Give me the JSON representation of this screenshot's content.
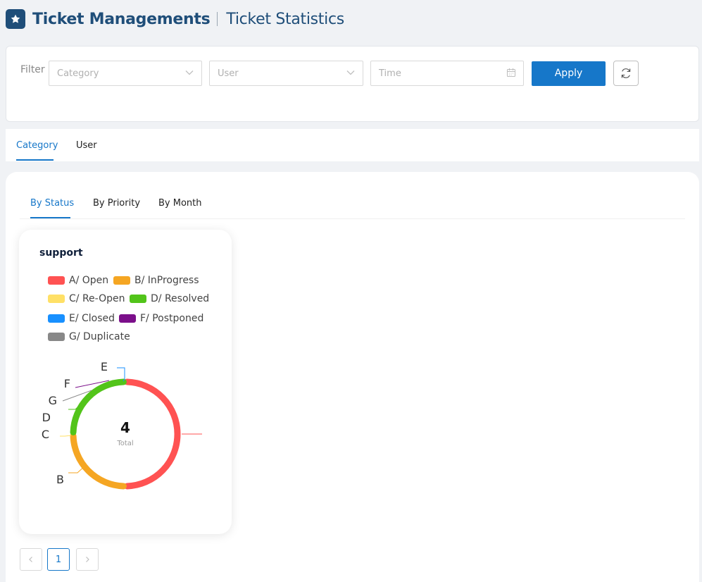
{
  "header": {
    "app_title": "Ticket Managements",
    "page_title": "Ticket Statistics"
  },
  "filter": {
    "label": "Filter",
    "category_placeholder": "Category",
    "user_placeholder": "User",
    "time_placeholder": "Time",
    "apply_label": "Apply"
  },
  "tabs": [
    {
      "label": "Category",
      "active": true
    },
    {
      "label": "User",
      "active": false
    }
  ],
  "sub_tabs": [
    {
      "label": "By Status",
      "active": true
    },
    {
      "label": "By Priority",
      "active": false
    },
    {
      "label": "By Month",
      "active": false
    }
  ],
  "card": {
    "title": "support",
    "legend": [
      {
        "label": "A/ Open",
        "color": "#ff5252"
      },
      {
        "label": "B/ InProgress",
        "color": "#f5a623"
      },
      {
        "label": "C/ Re-Open",
        "color": "#ffe066"
      },
      {
        "label": "D/ Resolved",
        "color": "#52c41a"
      },
      {
        "label": "E/ Closed",
        "color": "#1890ff"
      },
      {
        "label": "F/ Postponed",
        "color": "#7b0f8a"
      },
      {
        "label": "G/ Duplicate",
        "color": "#888888"
      }
    ],
    "total_value": "4",
    "total_label": "Total",
    "slice_labels": [
      "E",
      "F",
      "G",
      "D",
      "C",
      "B"
    ]
  },
  "chart_data": {
    "type": "pie",
    "title": "support",
    "categories": [
      "A/ Open",
      "B/ InProgress",
      "C/ Re-Open",
      "D/ Resolved",
      "E/ Closed",
      "F/ Postponed",
      "G/ Duplicate"
    ],
    "values": [
      2,
      1,
      0,
      1,
      0,
      0,
      0
    ],
    "colors": [
      "#ff5252",
      "#f5a623",
      "#ffe066",
      "#52c41a",
      "#1890ff",
      "#7b0f8a",
      "#888888"
    ],
    "center_value": 4,
    "center_label": "Total",
    "legend_position": "top"
  },
  "pagination": {
    "current_page": "1",
    "prev_icon": "chevron-left-icon",
    "next_icon": "chevron-right-icon"
  }
}
